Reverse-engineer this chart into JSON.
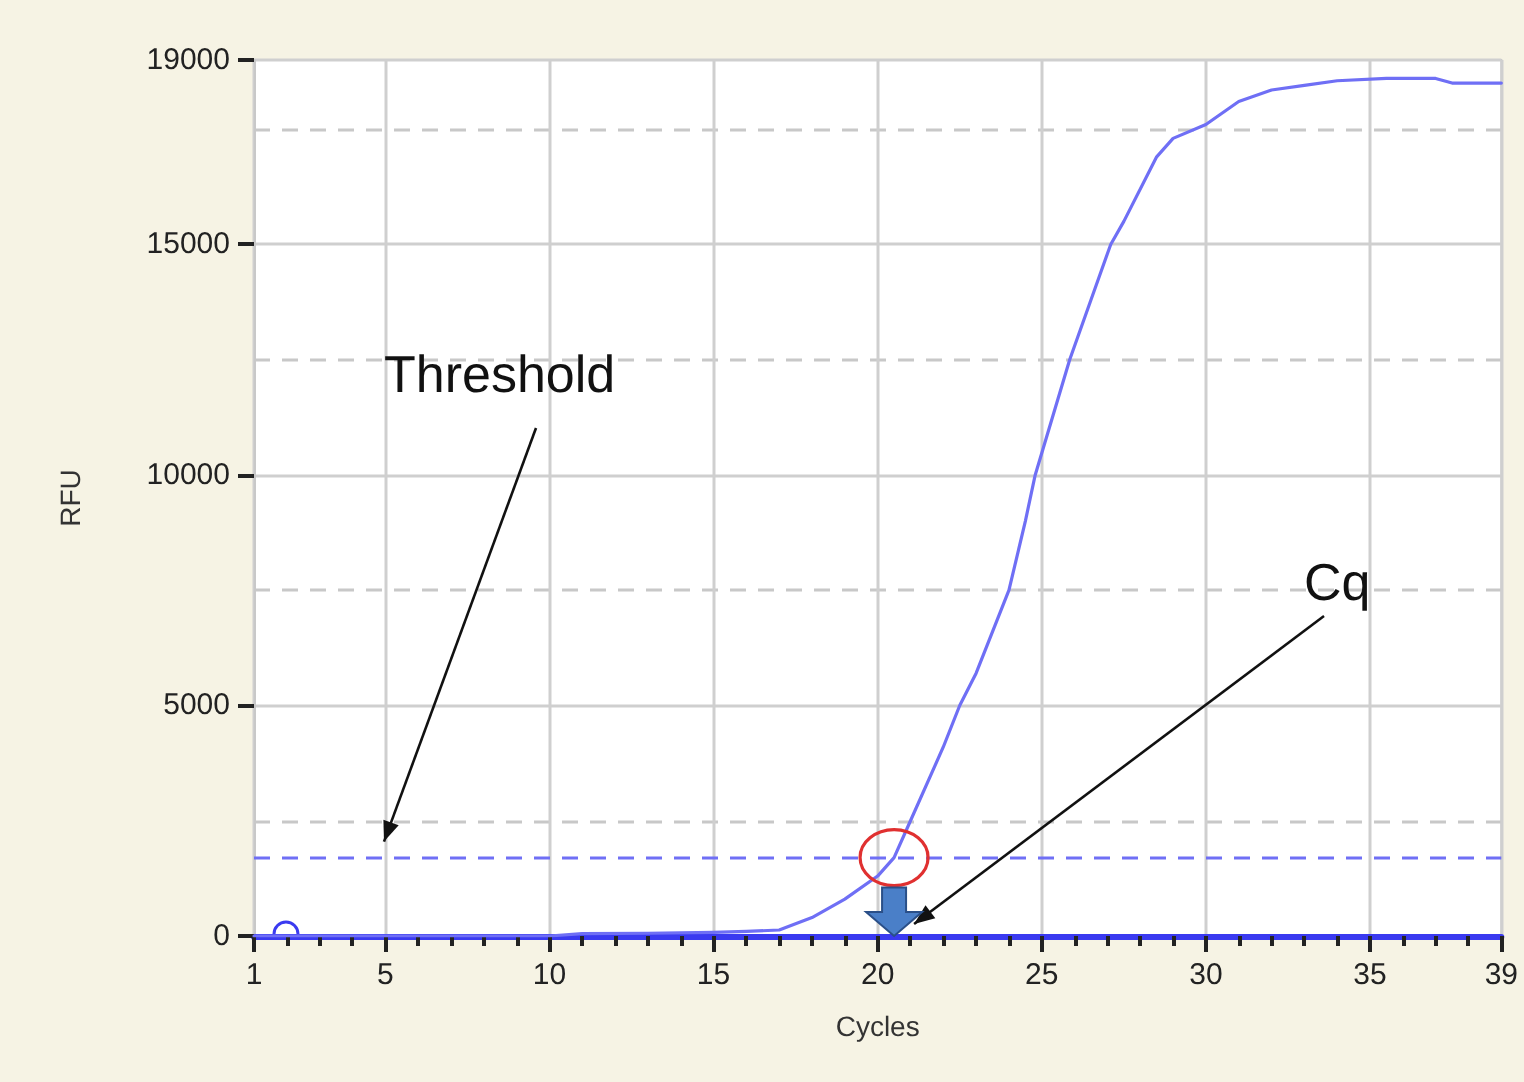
{
  "chart_data": {
    "type": "line",
    "xlabel": "Cycles",
    "ylabel": "RFU",
    "x": [
      1,
      3,
      6,
      10,
      11,
      13,
      15,
      16,
      17,
      18,
      19,
      20,
      20.5,
      21,
      22,
      22.5,
      23,
      24,
      24.5,
      24.8,
      25.85,
      26.5,
      27.1,
      27.5,
      28.5,
      29,
      30,
      31,
      32,
      33,
      34,
      35.5,
      37,
      37.5,
      39
    ],
    "series": [
      {
        "color": "#6f6ff5",
        "values": [
          0,
          0,
          0,
          0,
          50,
          60,
          80,
          100,
          130,
          400,
          800,
          1300,
          1700,
          2500,
          4100,
          5000,
          5700,
          7500,
          9000,
          10000,
          12500,
          13800,
          15000,
          15500,
          16900,
          17300,
          17600,
          18100,
          18350,
          18450,
          18550,
          18600,
          18600,
          18500,
          18500
        ]
      }
    ],
    "xlim": [
      1,
      39
    ],
    "xticks": [
      1,
      {
        "value": 2,
        "label": null
      },
      {
        "value": 3,
        "label": null
      },
      {
        "value": 4,
        "label": null
      },
      5,
      {
        "value": 6,
        "label": null
      },
      {
        "value": 7,
        "label": null
      },
      {
        "value": 8,
        "label": null
      },
      {
        "value": 9,
        "label": null
      },
      10,
      {
        "value": 11,
        "label": null
      },
      {
        "value": 12,
        "label": null
      },
      {
        "value": 13,
        "label": null
      },
      {
        "value": 14,
        "label": null
      },
      15,
      {
        "value": 16,
        "label": null
      },
      {
        "value": 17,
        "label": null
      },
      {
        "value": 18,
        "label": null
      },
      {
        "value": 19,
        "label": null
      },
      20,
      {
        "value": 21,
        "label": null
      },
      {
        "value": 22,
        "label": null
      },
      {
        "value": 23,
        "label": null
      },
      {
        "value": 24,
        "label": null
      },
      25,
      {
        "value": 26,
        "label": null
      },
      {
        "value": 27,
        "label": null
      },
      {
        "value": 28,
        "label": null
      },
      {
        "value": 29,
        "label": null
      },
      30,
      {
        "value": 31,
        "label": null
      },
      {
        "value": 32,
        "label": null
      },
      {
        "value": 33,
        "label": null
      },
      {
        "value": 34,
        "label": null
      },
      35,
      {
        "value": 36,
        "label": null
      },
      {
        "value": 37,
        "label": null
      },
      {
        "value": 38,
        "label": null
      },
      39
    ],
    "ylim": [
      0,
      19000
    ],
    "yticks": [
      0,
      {
        "value": 2500,
        "label": null
      },
      5000,
      {
        "value": 7500,
        "label": null
      },
      10000,
      {
        "value": 12500,
        "label": null
      },
      15000,
      {
        "value": 17500,
        "label": null
      },
      19000
    ],
    "grid": true,
    "marker": "none",
    "line_style": "solid",
    "ref_lines": [
      {
        "axis": "y",
        "value": 1700,
        "color": "#6f6ff5",
        "line_style": "dashed"
      }
    ],
    "annotations": [
      "Threshold",
      "Cq"
    ]
  }
}
